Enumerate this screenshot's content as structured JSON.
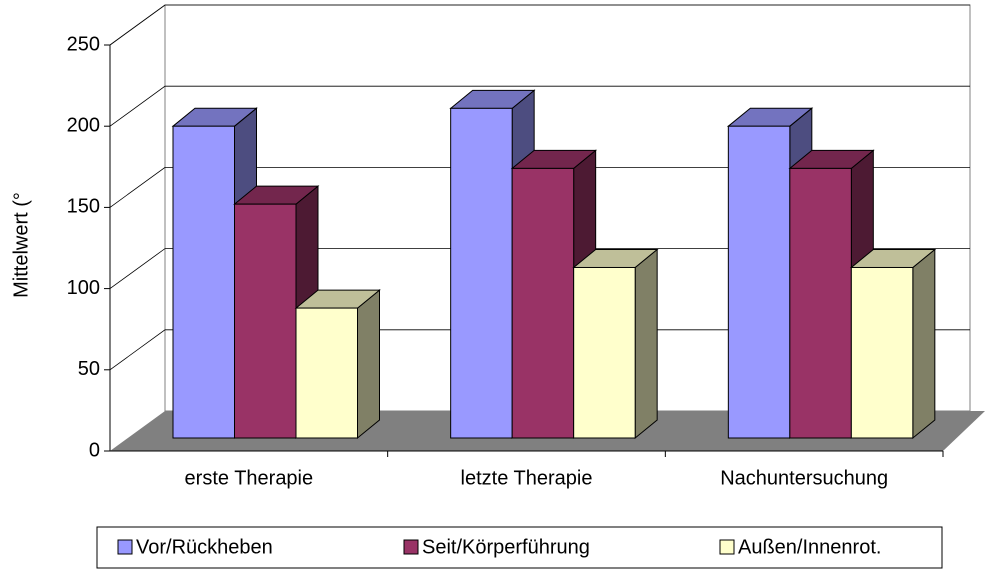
{
  "chart_data": {
    "type": "bar3d",
    "y_axis_label": "Mittelwert (°",
    "categories": [
      "erste Therapie",
      "letzte Therapie",
      "Nachuntersuchung"
    ],
    "series": [
      {
        "name": "Vor/Rückheben",
        "color": "#9999ff",
        "values": [
          192,
          203,
          192
        ]
      },
      {
        "name": "Seit/Körperführung",
        "color": "#993366",
        "values": [
          144,
          166,
          166
        ]
      },
      {
        "name": "Außen/Innenrot.",
        "color": "#ffffcc",
        "values": [
          80,
          105,
          105
        ]
      }
    ],
    "ylim": [
      0,
      250
    ],
    "yticks": [
      0,
      50,
      100,
      150,
      200,
      250
    ],
    "grid": true,
    "legend": "bottom"
  }
}
